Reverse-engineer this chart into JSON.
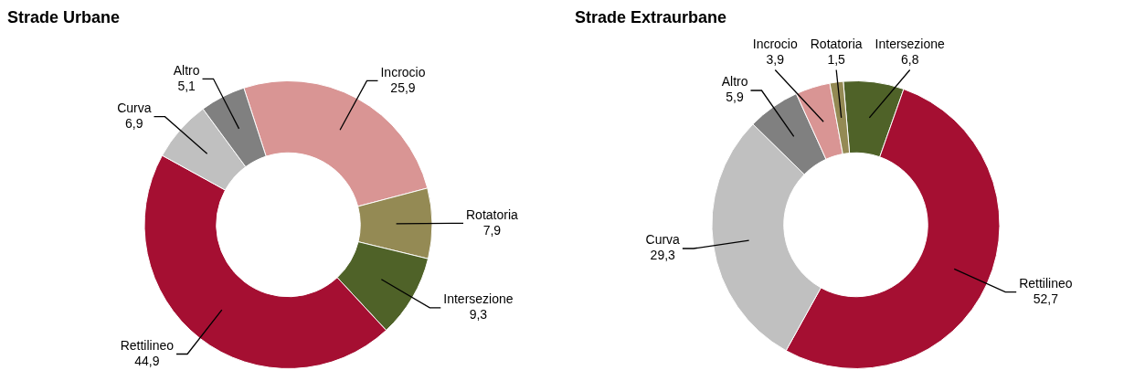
{
  "chart_data": [
    {
      "type": "donut",
      "title": "Strade Urbane",
      "categories": [
        "Incrocio",
        "Rotatoria",
        "Intersezione",
        "Rettilineo",
        "Curva",
        "Altro"
      ],
      "values": [
        25.9,
        7.9,
        9.3,
        44.9,
        6.9,
        5.1
      ],
      "value_labels": [
        "25,9",
        "7,9",
        "9,3",
        "44,9",
        "6,9",
        "5,1"
      ],
      "colors": [
        "#d99594",
        "#948a54",
        "#4f6228",
        "#a50f32",
        "#c0c0c0",
        "#808080"
      ],
      "legend": false
    },
    {
      "type": "donut",
      "title": "Strade Extraurbane",
      "categories": [
        "Intersezione",
        "Rettilineo",
        "Curva",
        "Altro",
        "Incrocio",
        "Rotatoria"
      ],
      "values": [
        6.8,
        52.7,
        29.3,
        5.9,
        3.9,
        1.5
      ],
      "value_labels": [
        "6,8",
        "52,7",
        "29,3",
        "5,9",
        "3,9",
        "1,5"
      ],
      "colors": [
        "#4f6228",
        "#a50f32",
        "#c0c0c0",
        "#808080",
        "#d99594",
        "#948a54"
      ],
      "legend": false
    }
  ]
}
